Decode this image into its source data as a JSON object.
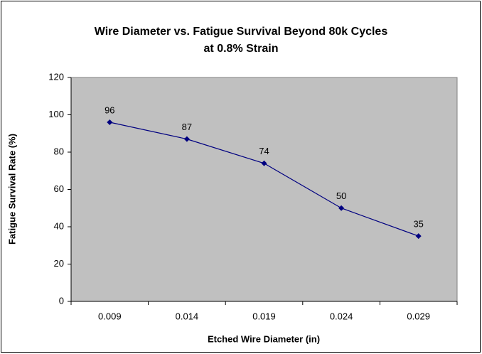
{
  "chart_data": {
    "type": "line",
    "title": [
      "Wire Diameter vs. Fatigue Survival Beyond 80k Cycles",
      "at 0.8% Strain"
    ],
    "x_label": "Etched Wire Diameter (in)",
    "y_label": "Fatigue Survival Rate (%)",
    "categories": [
      "0.009",
      "0.014",
      "0.019",
      "0.024",
      "0.029"
    ],
    "series": [
      {
        "name": "Fatigue Survival Rate",
        "color": "#000080",
        "values": [
          96,
          87,
          74,
          50,
          35
        ]
      }
    ],
    "ylim": [
      0,
      120
    ],
    "yticks": [
      0,
      20,
      40,
      60,
      80,
      100,
      120
    ],
    "grid": false,
    "data_labels": true
  }
}
